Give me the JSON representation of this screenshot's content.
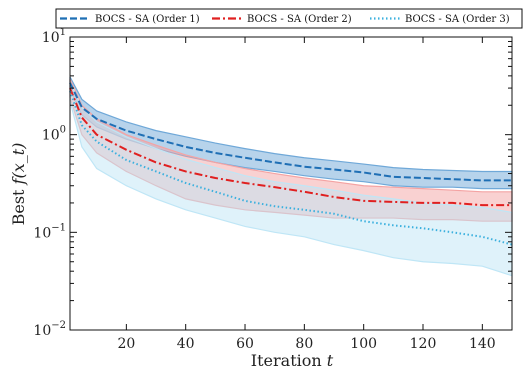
{
  "chart_data": {
    "type": "line",
    "xlabel": "Iteration t",
    "ylabel": "Best f(x_t)",
    "xlim": [
      1,
      150
    ],
    "ylim": [
      0.01,
      10
    ],
    "yscale": "log",
    "grid": false,
    "legend_position": "top",
    "x_ticks": [
      20,
      40,
      60,
      80,
      100,
      120,
      140
    ],
    "y_ticks": [
      {
        "value": 0.01,
        "base": "10",
        "exp": "−2"
      },
      {
        "value": 0.1,
        "base": "10",
        "exp": "−1"
      },
      {
        "value": 1,
        "base": "10",
        "exp": "0"
      },
      {
        "value": 10,
        "base": "10",
        "exp": "1"
      }
    ],
    "series": [
      {
        "name": "BOCS - SA (Order 1)",
        "color": "#1f6fb5",
        "band_color": "#6fa8d8",
        "line_style": "dashed",
        "x": [
          1,
          5,
          10,
          20,
          30,
          40,
          50,
          60,
          70,
          80,
          90,
          100,
          110,
          120,
          130,
          140,
          150
        ],
        "mean": [
          3.4,
          1.9,
          1.45,
          1.1,
          0.9,
          0.75,
          0.65,
          0.58,
          0.52,
          0.47,
          0.44,
          0.41,
          0.37,
          0.36,
          0.35,
          0.34,
          0.34
        ],
        "lower": [
          2.9,
          1.6,
          1.2,
          0.9,
          0.72,
          0.6,
          0.52,
          0.46,
          0.42,
          0.38,
          0.35,
          0.33,
          0.3,
          0.29,
          0.29,
          0.28,
          0.28
        ],
        "upper": [
          3.9,
          2.3,
          1.75,
          1.35,
          1.1,
          0.95,
          0.82,
          0.72,
          0.64,
          0.58,
          0.54,
          0.5,
          0.46,
          0.44,
          0.43,
          0.42,
          0.42
        ]
      },
      {
        "name": "BOCS - SA (Order 2)",
        "color": "#e02020",
        "band_color": "#f4a3a3",
        "line_style": "dashdot",
        "x": [
          1,
          5,
          10,
          20,
          30,
          40,
          50,
          60,
          70,
          80,
          90,
          100,
          110,
          120,
          130,
          140,
          150
        ],
        "mean": [
          3.0,
          1.5,
          1.0,
          0.7,
          0.52,
          0.42,
          0.36,
          0.32,
          0.29,
          0.26,
          0.23,
          0.21,
          0.205,
          0.2,
          0.2,
          0.19,
          0.19
        ],
        "lower": [
          2.4,
          1.0,
          0.65,
          0.42,
          0.3,
          0.22,
          0.19,
          0.17,
          0.16,
          0.15,
          0.14,
          0.14,
          0.14,
          0.135,
          0.135,
          0.13,
          0.13
        ],
        "upper": [
          3.7,
          2.0,
          1.45,
          1.0,
          0.78,
          0.62,
          0.52,
          0.45,
          0.4,
          0.36,
          0.33,
          0.3,
          0.29,
          0.28,
          0.27,
          0.26,
          0.26
        ]
      },
      {
        "name": "BOCS - SA (Order 3)",
        "color": "#3bb0de",
        "band_color": "#bfe6f6",
        "line_style": "dotted",
        "x": [
          1,
          5,
          10,
          20,
          30,
          40,
          50,
          60,
          70,
          80,
          90,
          100,
          110,
          120,
          130,
          140,
          150
        ],
        "mean": [
          2.8,
          1.25,
          0.85,
          0.55,
          0.42,
          0.32,
          0.26,
          0.21,
          0.185,
          0.17,
          0.155,
          0.13,
          0.118,
          0.11,
          0.1,
          0.09,
          0.075
        ],
        "lower": [
          2.2,
          0.75,
          0.45,
          0.3,
          0.22,
          0.17,
          0.14,
          0.115,
          0.1,
          0.09,
          0.075,
          0.065,
          0.055,
          0.05,
          0.048,
          0.045,
          0.036
        ],
        "upper": [
          3.5,
          1.9,
          1.35,
          0.95,
          0.72,
          0.56,
          0.46,
          0.38,
          0.33,
          0.3,
          0.27,
          0.24,
          0.22,
          0.2,
          0.19,
          0.18,
          0.16
        ]
      }
    ]
  }
}
